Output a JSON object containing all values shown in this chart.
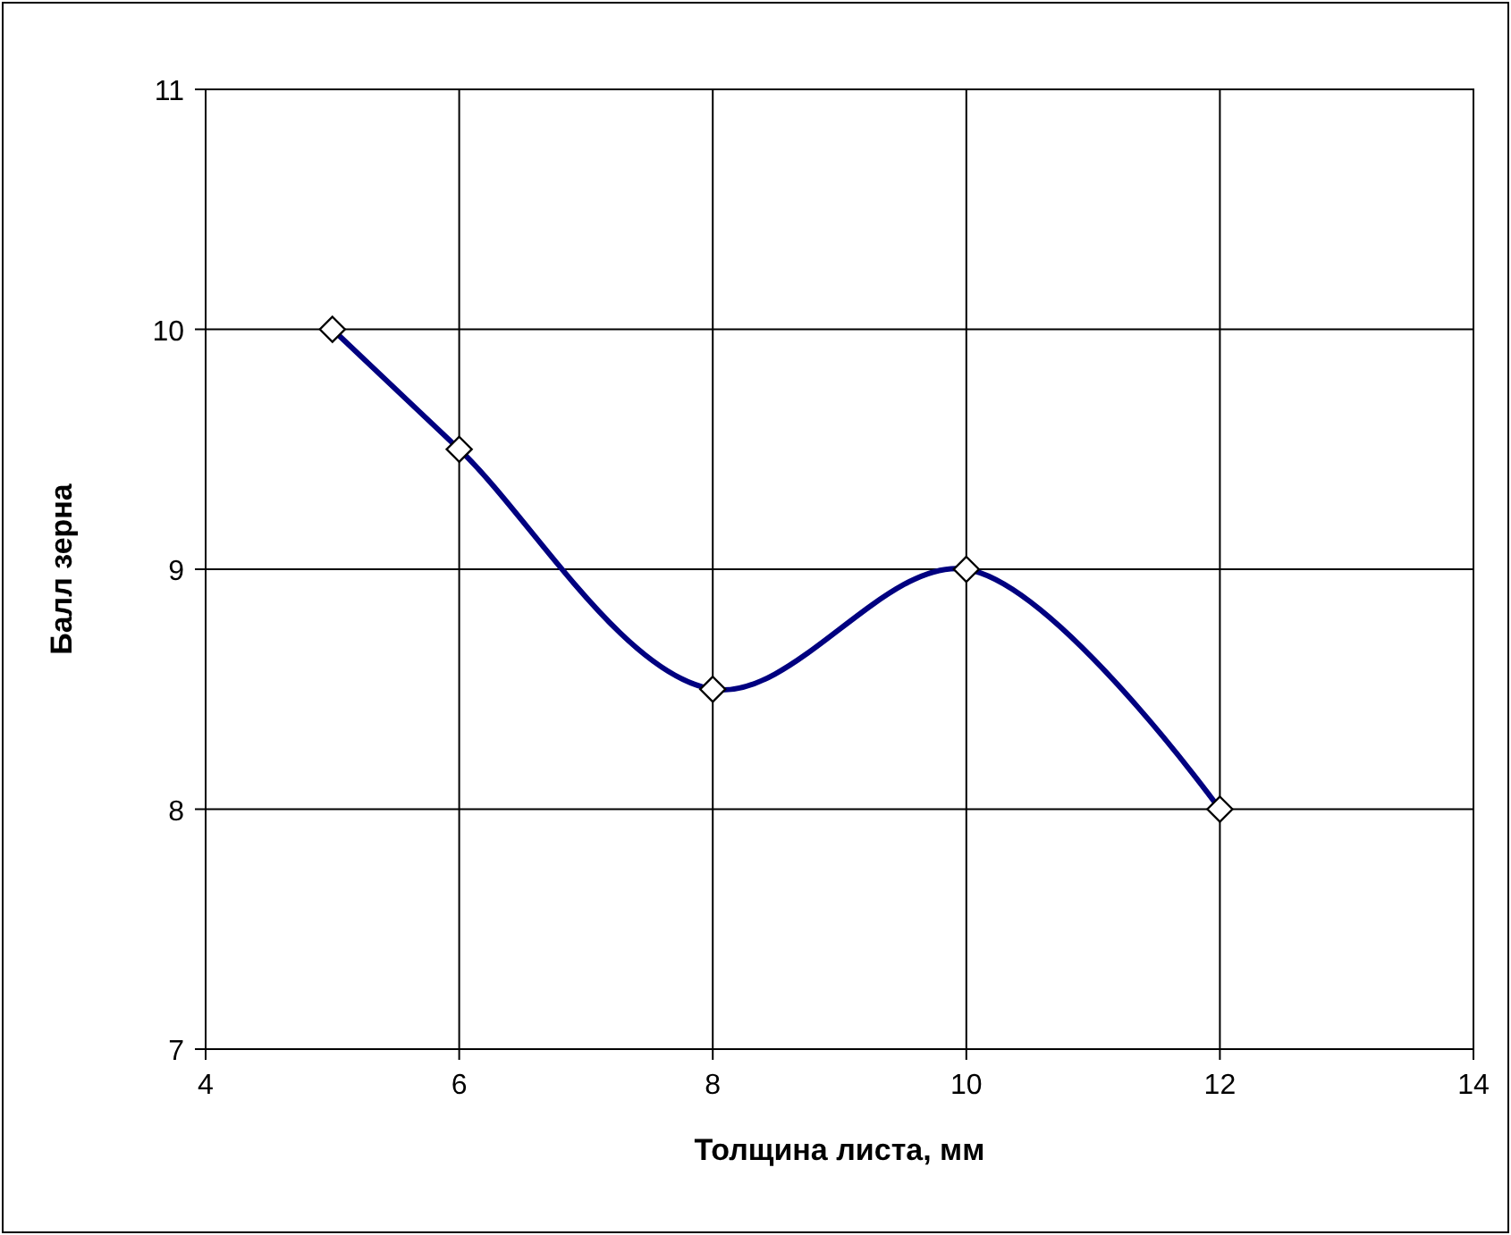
{
  "chart_data": {
    "type": "line",
    "xlabel": "Толщина листа, мм",
    "ylabel": "Балл зерна",
    "x": [
      5,
      6,
      8,
      10,
      12
    ],
    "series": [
      {
        "color": "#000080",
        "values": [
          10,
          9.5,
          8.5,
          9,
          8
        ]
      }
    ],
    "xlim": [
      4,
      14
    ],
    "xticks": [
      4,
      6,
      8,
      10,
      12,
      14
    ],
    "ylim": [
      7,
      11
    ],
    "yticks": [
      7,
      8,
      9,
      10,
      11
    ],
    "grid": true,
    "marker": "diamond",
    "line_style": "solid"
  }
}
